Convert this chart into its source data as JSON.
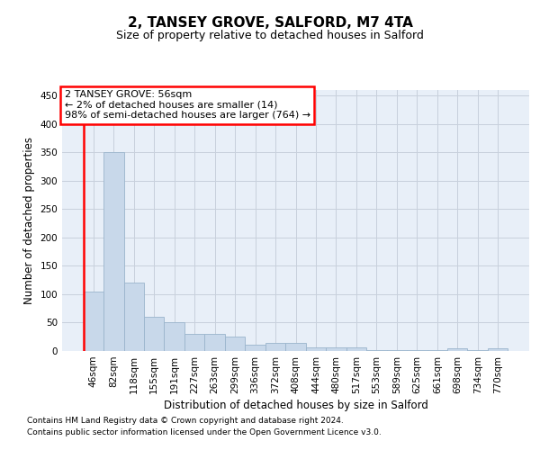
{
  "title_line1": "2, TANSEY GROVE, SALFORD, M7 4TA",
  "title_line2": "Size of property relative to detached houses in Salford",
  "xlabel": "Distribution of detached houses by size in Salford",
  "ylabel": "Number of detached properties",
  "categories": [
    "46sqm",
    "82sqm",
    "118sqm",
    "155sqm",
    "191sqm",
    "227sqm",
    "263sqm",
    "299sqm",
    "336sqm",
    "372sqm",
    "408sqm",
    "444sqm",
    "480sqm",
    "517sqm",
    "553sqm",
    "589sqm",
    "625sqm",
    "661sqm",
    "698sqm",
    "734sqm",
    "770sqm"
  ],
  "values": [
    105,
    350,
    120,
    61,
    50,
    30,
    30,
    25,
    11,
    14,
    14,
    7,
    7,
    7,
    2,
    2,
    2,
    2,
    4,
    2,
    4
  ],
  "bar_color": "#c8d8ea",
  "bar_edgecolor": "#9ab4cc",
  "annotation_text_line1": "2 TANSEY GROVE: 56sqm",
  "annotation_text_line2": "← 2% of detached houses are smaller (14)",
  "annotation_text_line3": "98% of semi-detached houses are larger (764) →",
  "annotation_box_edgecolor": "red",
  "annotation_box_facecolor": "white",
  "vline_color": "red",
  "ylim": [
    0,
    460
  ],
  "yticks": [
    0,
    50,
    100,
    150,
    200,
    250,
    300,
    350,
    400,
    450
  ],
  "grid_color": "#c8d0dc",
  "background_color": "#e8eff8",
  "footnote1": "Contains HM Land Registry data © Crown copyright and database right 2024.",
  "footnote2": "Contains public sector information licensed under the Open Government Licence v3.0.",
  "title_fontsize": 11,
  "subtitle_fontsize": 9,
  "ylabel_fontsize": 8.5,
  "xlabel_fontsize": 8.5,
  "tick_fontsize": 7.5,
  "annot_fontsize": 8,
  "footnote_fontsize": 6.5
}
